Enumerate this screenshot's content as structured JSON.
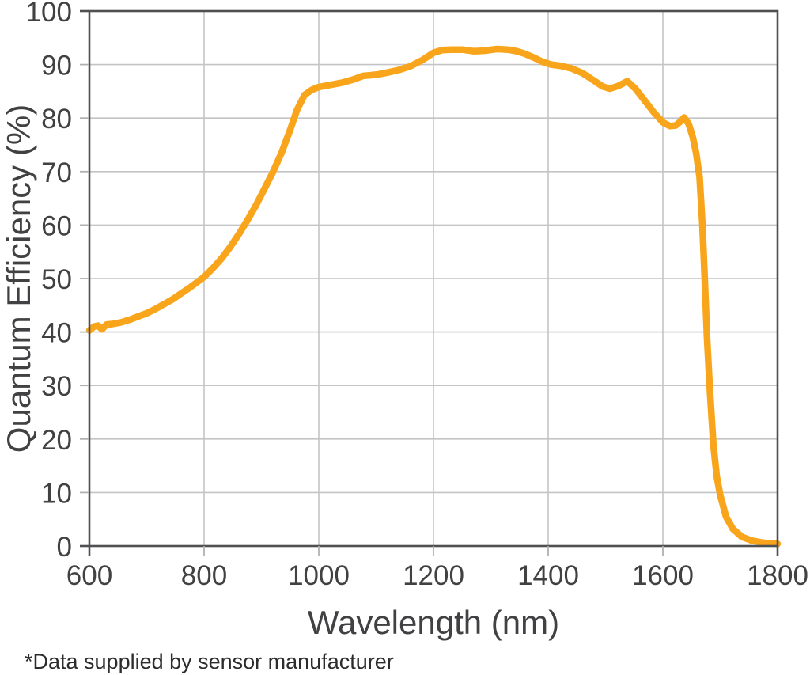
{
  "page": {
    "footnote": "*Data supplied by sensor manufacturer"
  },
  "colors": {
    "line": "#F9A51B",
    "gridline": "#c3c4c6",
    "tick": "#b0b1b3",
    "axis_border": "#4e5052",
    "text": "#414042",
    "footnote_text": "#2c2c2e",
    "background": "#ffffff"
  },
  "chart_data": {
    "type": "line",
    "title": "",
    "xlabel": "Wavelength (nm)",
    "ylabel": "Quantum Efficiency (%)",
    "xlim": [
      600,
      1800
    ],
    "ylim": [
      0,
      100
    ],
    "x_ticks": [
      600,
      800,
      1000,
      1200,
      1400,
      1600,
      1800
    ],
    "y_ticks": [
      0,
      10,
      20,
      30,
      40,
      50,
      60,
      70,
      80,
      90,
      100
    ],
    "grid": true,
    "legend": false,
    "series": [
      {
        "name": "Quantum Efficiency",
        "points": [
          [
            600,
            40.3
          ],
          [
            608,
            41.0
          ],
          [
            615,
            41.2
          ],
          [
            622,
            40.5
          ],
          [
            630,
            41.4
          ],
          [
            640,
            41.5
          ],
          [
            655,
            41.8
          ],
          [
            670,
            42.3
          ],
          [
            685,
            42.9
          ],
          [
            700,
            43.5
          ],
          [
            715,
            44.3
          ],
          [
            730,
            45.2
          ],
          [
            745,
            46.1
          ],
          [
            760,
            47.2
          ],
          [
            775,
            48.3
          ],
          [
            790,
            49.5
          ],
          [
            800,
            50.3
          ],
          [
            815,
            51.9
          ],
          [
            830,
            53.7
          ],
          [
            845,
            55.8
          ],
          [
            860,
            58.2
          ],
          [
            875,
            60.8
          ],
          [
            890,
            63.6
          ],
          [
            905,
            66.7
          ],
          [
            920,
            69.9
          ],
          [
            935,
            73.5
          ],
          [
            950,
            77.8
          ],
          [
            962,
            81.5
          ],
          [
            975,
            84.3
          ],
          [
            988,
            85.3
          ],
          [
            1000,
            85.8
          ],
          [
            1020,
            86.2
          ],
          [
            1040,
            86.6
          ],
          [
            1060,
            87.2
          ],
          [
            1078,
            87.9
          ],
          [
            1090,
            88.0
          ],
          [
            1105,
            88.2
          ],
          [
            1120,
            88.5
          ],
          [
            1140,
            89.0
          ],
          [
            1160,
            89.7
          ],
          [
            1180,
            90.8
          ],
          [
            1200,
            92.2
          ],
          [
            1215,
            92.7
          ],
          [
            1230,
            92.8
          ],
          [
            1250,
            92.8
          ],
          [
            1270,
            92.5
          ],
          [
            1290,
            92.6
          ],
          [
            1310,
            92.9
          ],
          [
            1330,
            92.8
          ],
          [
            1345,
            92.5
          ],
          [
            1360,
            92.0
          ],
          [
            1375,
            91.3
          ],
          [
            1390,
            90.5
          ],
          [
            1405,
            90.0
          ],
          [
            1420,
            89.8
          ],
          [
            1440,
            89.3
          ],
          [
            1460,
            88.4
          ],
          [
            1480,
            87.0
          ],
          [
            1495,
            85.9
          ],
          [
            1508,
            85.5
          ],
          [
            1522,
            86.0
          ],
          [
            1538,
            86.9
          ],
          [
            1552,
            85.5
          ],
          [
            1568,
            83.3
          ],
          [
            1584,
            81.1
          ],
          [
            1600,
            79.2
          ],
          [
            1612,
            78.5
          ],
          [
            1622,
            78.6
          ],
          [
            1630,
            79.3
          ],
          [
            1637,
            80.1
          ],
          [
            1645,
            78.9
          ],
          [
            1652,
            76.5
          ],
          [
            1658,
            73.5
          ],
          [
            1664,
            69.0
          ],
          [
            1669,
            60.0
          ],
          [
            1673,
            50.0
          ],
          [
            1677,
            39.0
          ],
          [
            1682,
            29.0
          ],
          [
            1688,
            19.0
          ],
          [
            1694,
            13.0
          ],
          [
            1700,
            9.5
          ],
          [
            1710,
            5.5
          ],
          [
            1722,
            3.2
          ],
          [
            1738,
            1.7
          ],
          [
            1755,
            1.0
          ],
          [
            1775,
            0.6
          ],
          [
            1800,
            0.4
          ]
        ]
      }
    ]
  }
}
